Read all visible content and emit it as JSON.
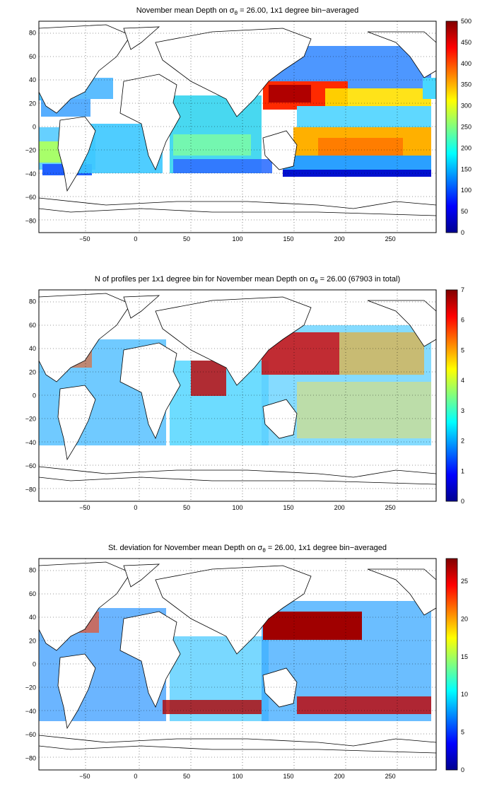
{
  "figure": {
    "panels": [
      {
        "id": "mean",
        "title_pre": "November mean Depth on ",
        "title_post": " = 26.00, 1x1 degree bin−averaged",
        "sigma": "σ",
        "sub": "θ",
        "cmax": 500,
        "cticks": [
          "0",
          "50",
          "100",
          "150",
          "200",
          "250",
          "300",
          "350",
          "400",
          "450",
          "500"
        ]
      },
      {
        "id": "count",
        "title_pre": "N of profiles per 1x1 degree bin for November mean Depth on ",
        "title_post": " = 26.00 (67903 in total)",
        "sigma": "σ",
        "sub": "θ",
        "cmax": 7,
        "cticks": [
          "0",
          "1",
          "2",
          "3",
          "4",
          "5",
          "6",
          "7"
        ]
      },
      {
        "id": "std",
        "title_pre": "St. deviation for November mean Depth on ",
        "title_post": " = 26.00, 1x1 degree bin−averaged",
        "sigma": "σ",
        "sub": "θ",
        "cmax": 28,
        "cticks": [
          "0",
          "5",
          "10",
          "15",
          "20",
          "25"
        ],
        "ctick_values": [
          0,
          5,
          10,
          15,
          20,
          25
        ]
      }
    ],
    "xticks": [
      "−50",
      "0",
      "50",
      "100",
      "150",
      "200",
      "250"
    ],
    "xtick_values": [
      -50,
      0,
      50,
      100,
      150,
      200,
      250
    ],
    "yticks": [
      "80",
      "60",
      "40",
      "20",
      "0",
      "−20",
      "−40",
      "−60",
      "−80"
    ],
    "ytick_values": [
      80,
      60,
      40,
      20,
      0,
      -20,
      -40,
      -60,
      -80
    ],
    "xlim": [
      -95,
      295
    ],
    "ylim": [
      -90,
      90
    ],
    "colormap": "jet",
    "grid": "dotted"
  }
}
